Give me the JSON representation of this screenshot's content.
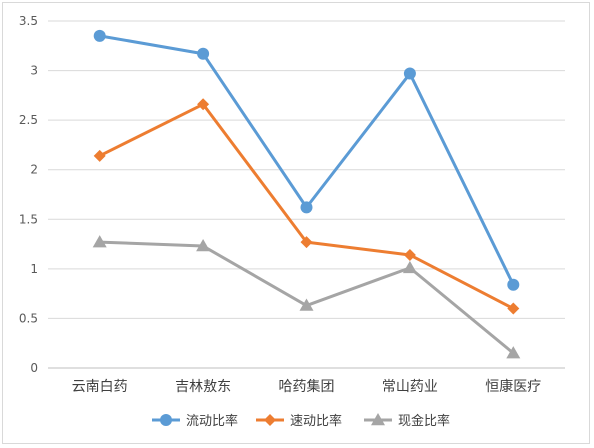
{
  "chart_data": {
    "type": "line",
    "title": "",
    "xlabel": "",
    "ylabel": "",
    "categories": [
      "云南白药",
      "吉林敖东",
      "哈药集团",
      "常山药业",
      "恒康医疗"
    ],
    "ylim": [
      0,
      3.5
    ],
    "yticks": [
      "0",
      "0.5",
      "1",
      "1.5",
      "2",
      "2.5",
      "3",
      "3.5"
    ],
    "ytick_values": [
      0,
      0.5,
      1,
      1.5,
      2,
      2.5,
      3,
      3.5
    ],
    "grid": true,
    "legend_position": "bottom",
    "series": [
      {
        "name": "流动比率",
        "color": "#5b9bd5",
        "marker": "circle",
        "values": [
          3.35,
          3.17,
          1.62,
          2.97,
          0.84
        ]
      },
      {
        "name": "速动比率",
        "color": "#ed7d31",
        "marker": "diamond",
        "values": [
          2.14,
          2.66,
          1.27,
          1.14,
          0.6
        ]
      },
      {
        "name": "现金比率",
        "color": "#a5a5a5",
        "marker": "triangle",
        "values": [
          1.27,
          1.23,
          0.63,
          1.01,
          0.15
        ]
      }
    ]
  }
}
